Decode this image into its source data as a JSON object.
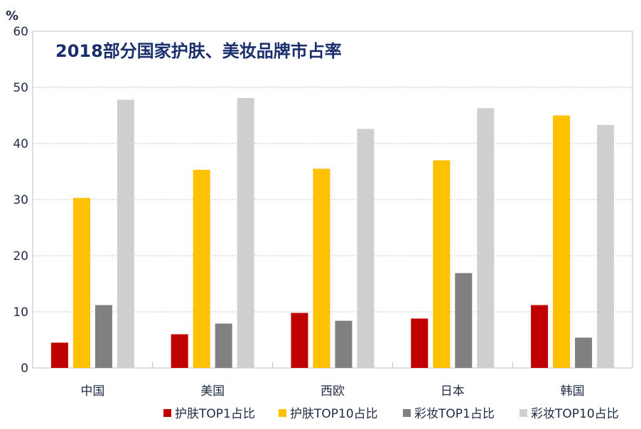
{
  "chart_data": {
    "type": "bar",
    "title": "2018部分国家护肤、美妆品牌市占率",
    "ylabel": "%",
    "xlabel": "",
    "ylim": [
      0,
      60
    ],
    "yticks": [
      "0",
      "10",
      "20",
      "30",
      "40",
      "50",
      "60"
    ],
    "grid": true,
    "legend_position": "bottom",
    "categories": [
      "中国",
      "美国",
      "西欧",
      "日本",
      "韩国"
    ],
    "series": [
      {
        "name": "护肤TOP1占比",
        "color": "#c00000",
        "values": [
          4.5,
          6.0,
          9.8,
          8.8,
          11.2
        ]
      },
      {
        "name": "护肤TOP10占比",
        "color": "#ffc000",
        "values": [
          30.3,
          35.3,
          35.5,
          37.0,
          45.0
        ]
      },
      {
        "name": "彩妆TOP1占比",
        "color": "#808080",
        "values": [
          11.2,
          7.9,
          8.4,
          16.9,
          5.4
        ]
      },
      {
        "name": "彩妆TOP10占比",
        "color": "#d0cfd0",
        "values": [
          47.8,
          48.1,
          42.6,
          46.3,
          43.3
        ]
      }
    ]
  }
}
